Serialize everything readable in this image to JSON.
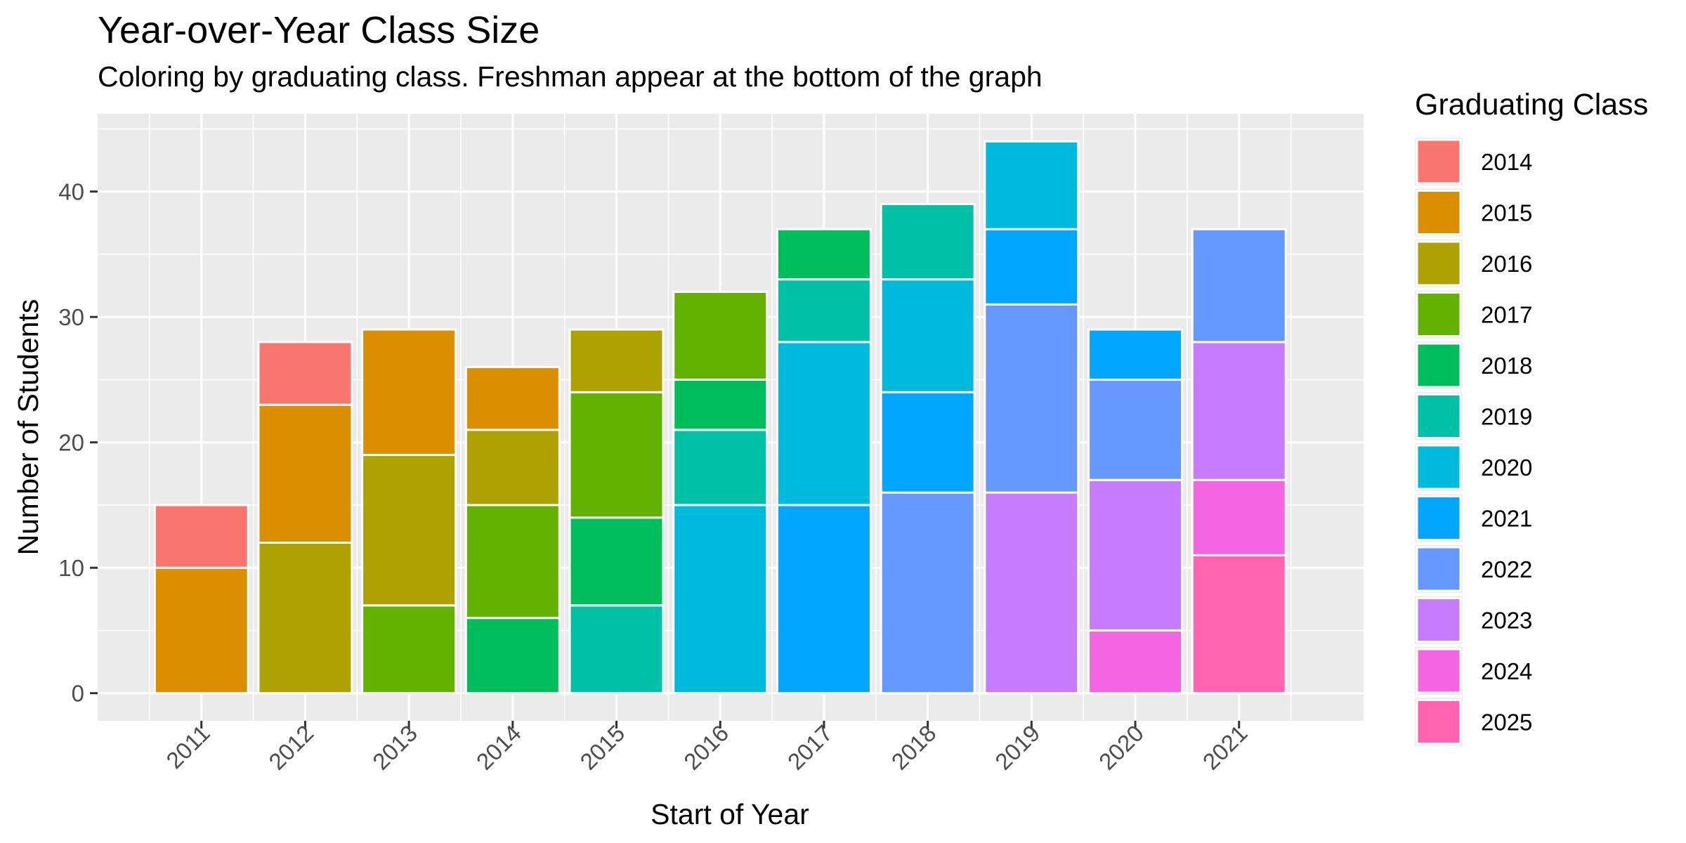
{
  "chart_data": {
    "type": "bar",
    "stacked": true,
    "title": "Year-over-Year Class Size",
    "subtitle": "Coloring by graduating class. Freshman appear at the bottom of the graph",
    "xlabel": "Start of Year",
    "ylabel": "Number of Students",
    "categories": [
      "2011",
      "2012",
      "2013",
      "2014",
      "2015",
      "2016",
      "2017",
      "2018",
      "2019",
      "2020",
      "2021"
    ],
    "yticks": [
      0,
      10,
      20,
      30,
      40
    ],
    "ylim": [
      -2.2,
      46.2
    ],
    "grid": true,
    "legend": {
      "title": "Graduating Class",
      "position": "right"
    },
    "series": [
      {
        "name": "2014",
        "color": "#F8766D",
        "values": [
          5,
          5,
          0,
          0,
          0,
          0,
          0,
          0,
          0,
          0,
          0
        ]
      },
      {
        "name": "2015",
        "color": "#DB8E00",
        "values": [
          10,
          11,
          10,
          5,
          0,
          0,
          0,
          0,
          0,
          0,
          0
        ]
      },
      {
        "name": "2016",
        "color": "#AEA200",
        "values": [
          0,
          12,
          12,
          6,
          5,
          0,
          0,
          0,
          0,
          0,
          0
        ]
      },
      {
        "name": "2017",
        "color": "#64B200",
        "values": [
          0,
          0,
          7,
          9,
          10,
          7,
          0,
          0,
          0,
          0,
          0
        ]
      },
      {
        "name": "2018",
        "color": "#00BD5C",
        "values": [
          0,
          0,
          0,
          6,
          7,
          4,
          4,
          0,
          0,
          0,
          0
        ]
      },
      {
        "name": "2019",
        "color": "#00C1A7",
        "values": [
          0,
          0,
          0,
          0,
          7,
          6,
          5,
          6,
          0,
          0,
          0
        ]
      },
      {
        "name": "2020",
        "color": "#00BADE",
        "values": [
          0,
          0,
          0,
          0,
          0,
          15,
          13,
          9,
          7,
          0,
          0
        ]
      },
      {
        "name": "2021",
        "color": "#00A6FF",
        "values": [
          0,
          0,
          0,
          0,
          0,
          0,
          15,
          8,
          6,
          4,
          0
        ]
      },
      {
        "name": "2022",
        "color": "#6699FF",
        "values": [
          0,
          0,
          0,
          0,
          0,
          0,
          0,
          16,
          15,
          8,
          9
        ]
      },
      {
        "name": "2023",
        "color": "#C77CFF",
        "values": [
          0,
          0,
          0,
          0,
          0,
          0,
          0,
          0,
          16,
          12,
          11
        ]
      },
      {
        "name": "2024",
        "color": "#F564E3",
        "values": [
          0,
          0,
          0,
          0,
          0,
          0,
          0,
          0,
          0,
          5,
          6
        ]
      },
      {
        "name": "2025",
        "color": "#FF64B0",
        "values": [
          0,
          0,
          0,
          0,
          0,
          0,
          0,
          0,
          0,
          0,
          11
        ]
      }
    ],
    "colors": {
      "panel_background": "#EBEBEB",
      "grid_line": "#FFFFFF",
      "bar_outline": "#FFFFFF",
      "tick_text": "#4D4D4D"
    }
  }
}
